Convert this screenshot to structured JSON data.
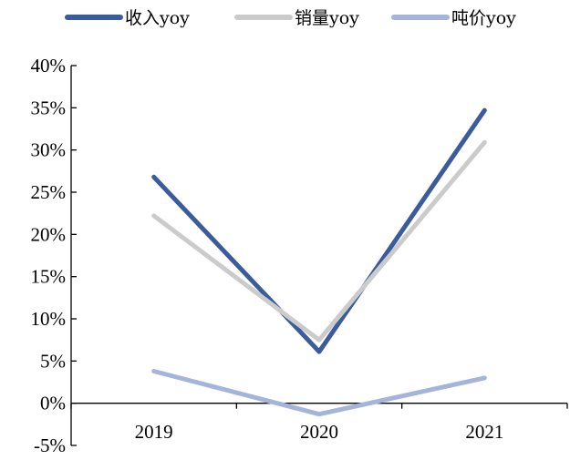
{
  "chart_data": {
    "type": "line",
    "categories": [
      "2019",
      "2020",
      "2021"
    ],
    "series": [
      {
        "name": "收入yoy",
        "values": [
          26.8,
          6.1,
          34.7
        ],
        "color": "#3a5c9c"
      },
      {
        "name": "销量yoy",
        "values": [
          22.2,
          7.5,
          30.9
        ],
        "color": "#cbcbcb"
      },
      {
        "name": "吨价yoy",
        "values": [
          3.8,
          -1.3,
          3.0
        ],
        "color": "#a4b4da"
      }
    ],
    "y_ticks": [
      "40%",
      "35%",
      "30%",
      "25%",
      "20%",
      "15%",
      "10%",
      "5%",
      "0%",
      "-5%"
    ],
    "ylim": [
      -5,
      40
    ],
    "y_unit": "%",
    "grid": false,
    "legend_position": "top"
  }
}
